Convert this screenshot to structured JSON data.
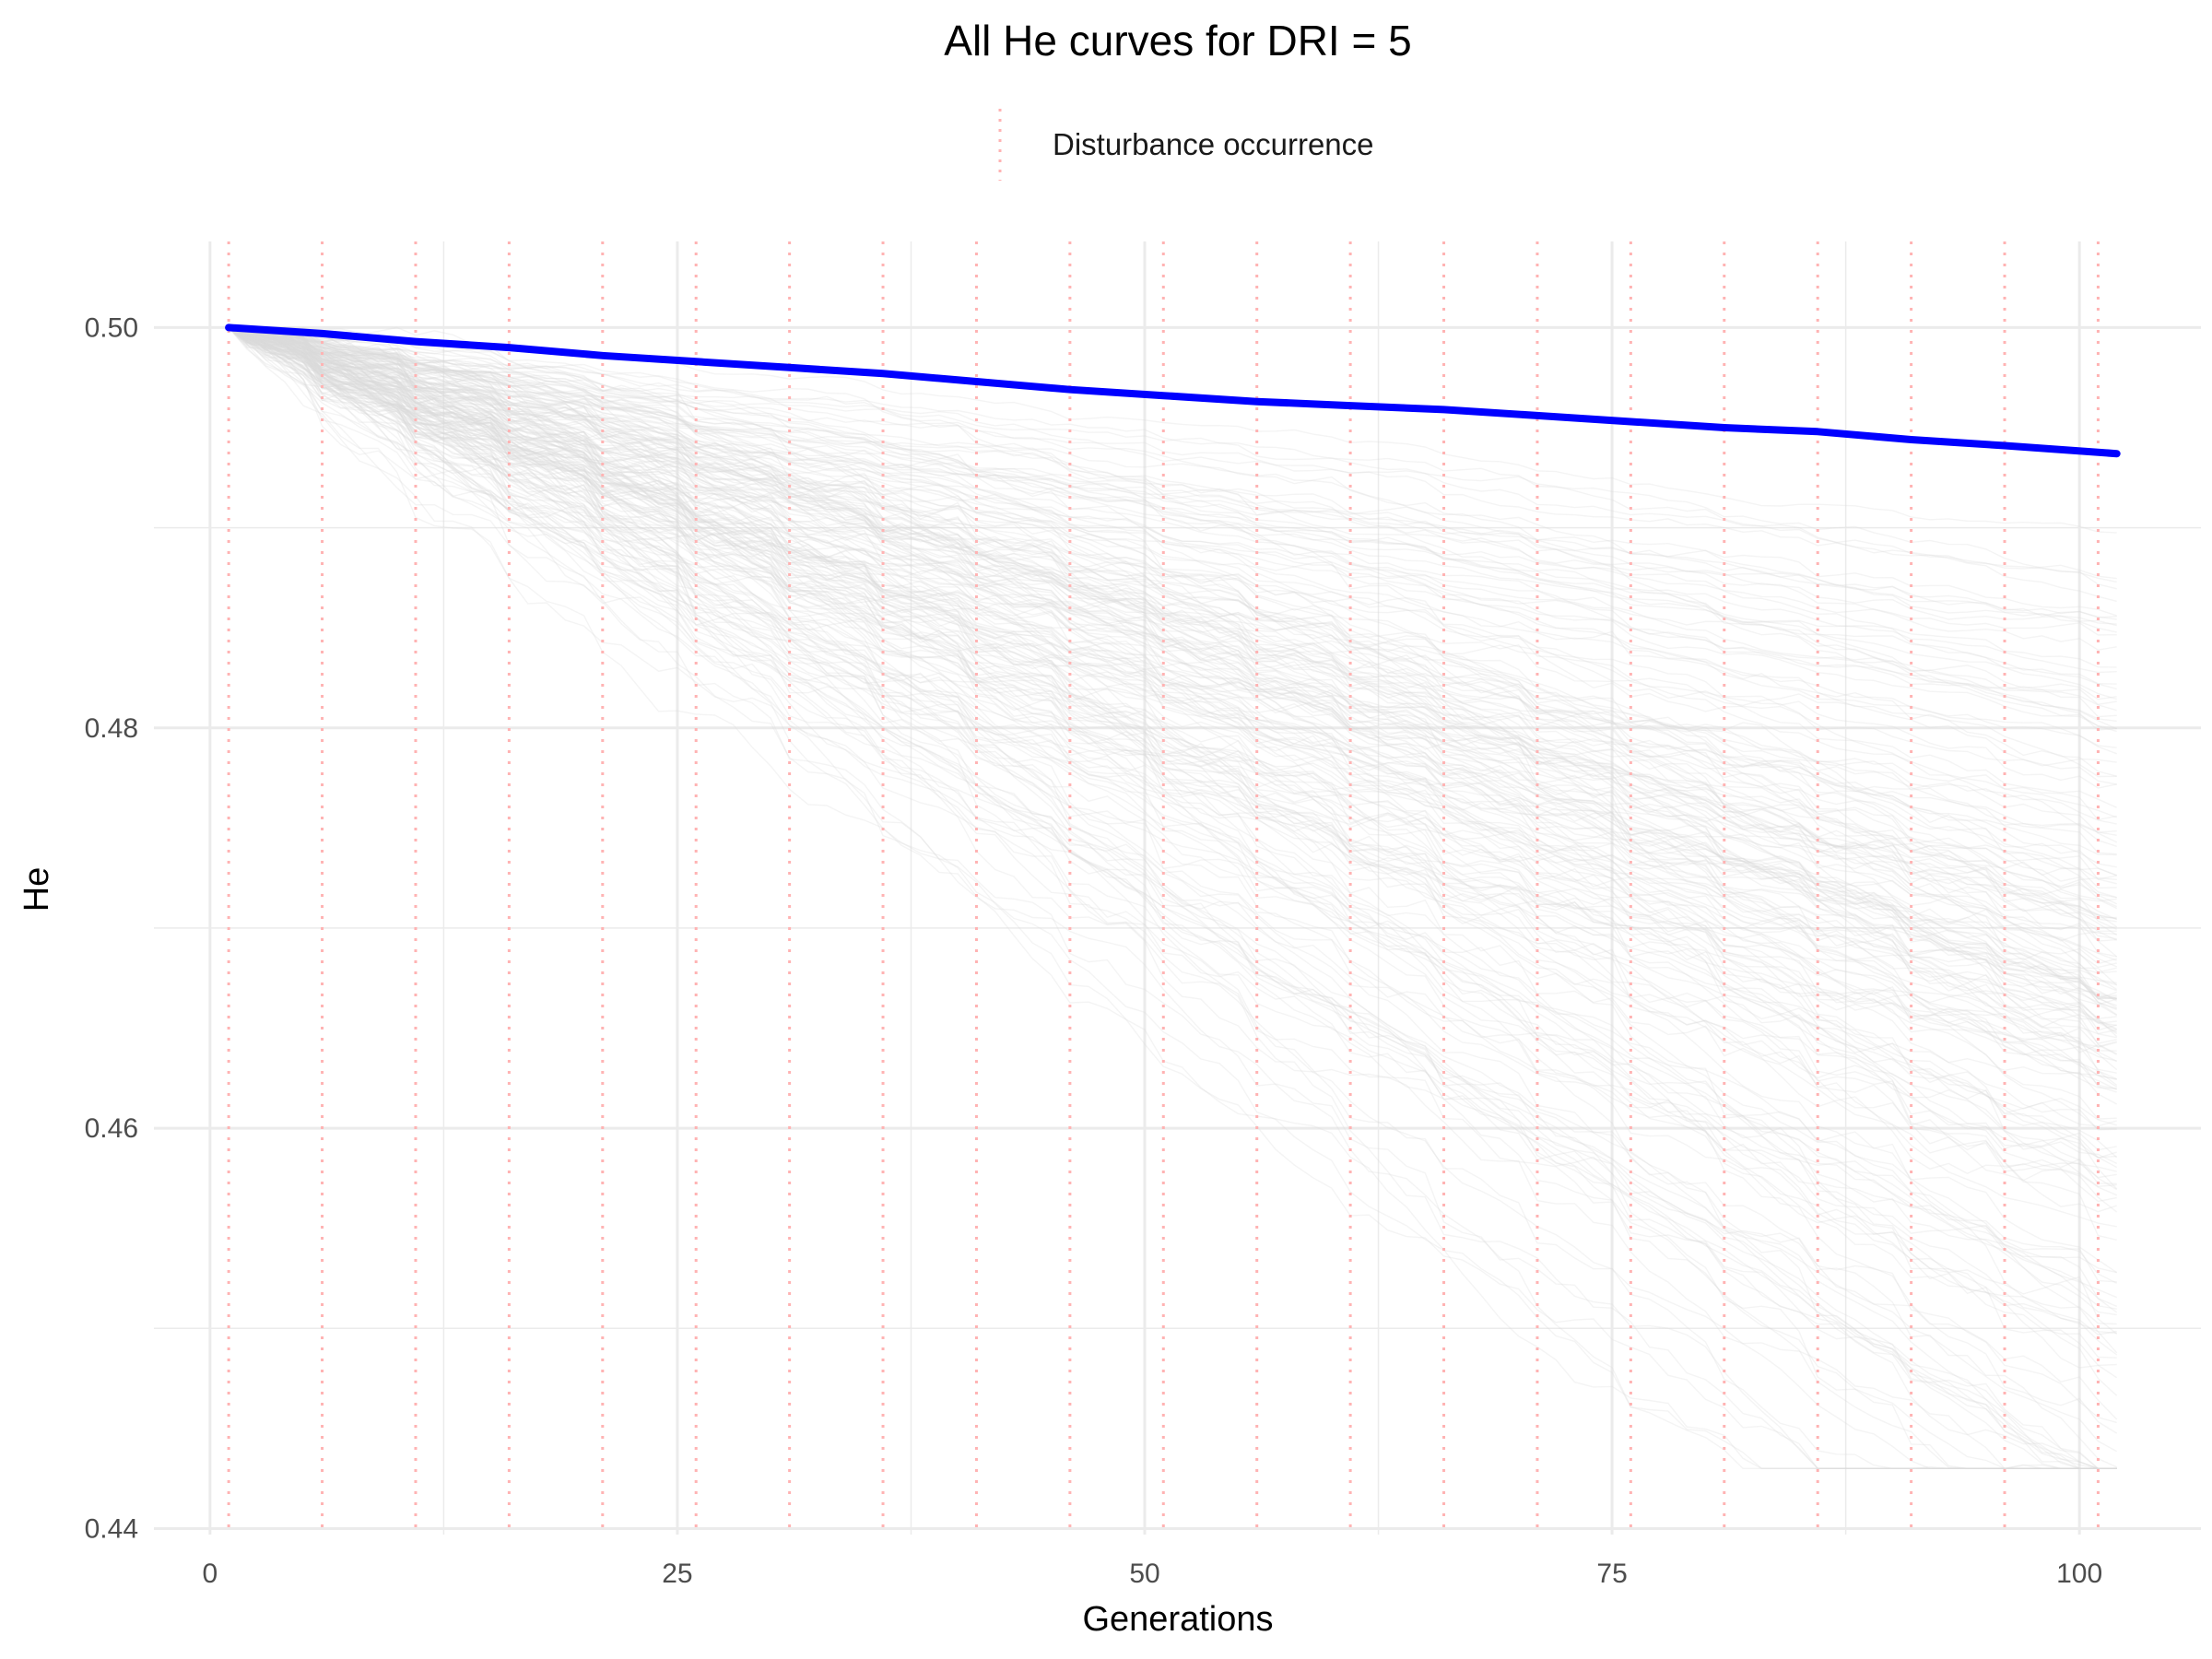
{
  "chart_data": {
    "type": "line",
    "title": "All He curves for DRI = 5",
    "xlabel": "Generations",
    "ylabel": "He",
    "xlim": [
      -3,
      106.5
    ],
    "ylim": [
      0.4397,
      0.5043
    ],
    "x_ticks": [
      0,
      25,
      50,
      75,
      100
    ],
    "x_tick_labels": [
      "0",
      "25",
      "50",
      "75",
      "100"
    ],
    "y_ticks": [
      0.44,
      0.46,
      0.48,
      0.5
    ],
    "y_tick_labels": [
      "0.44",
      "0.46",
      "0.48",
      "0.50"
    ],
    "grid": true,
    "legend": {
      "position": "top",
      "entries": [
        {
          "label": "Disturbance occurrence",
          "color": "#ffb3b3",
          "style": "dotted"
        }
      ]
    },
    "disturbance_x": [
      1,
      6,
      11,
      16,
      21,
      26,
      31,
      36,
      41,
      46,
      51,
      56,
      61,
      66,
      71,
      76,
      81,
      86,
      91,
      96,
      101
    ],
    "mean_curve": {
      "color": "#0000ff",
      "x": [
        1,
        6,
        11,
        16,
        21,
        26,
        31,
        36,
        41,
        46,
        51,
        56,
        61,
        66,
        71,
        76,
        81,
        86,
        91,
        96,
        102
      ],
      "y": [
        0.5,
        0.4997,
        0.4993,
        0.499,
        0.4986,
        0.4983,
        0.498,
        0.4977,
        0.4973,
        0.4969,
        0.4966,
        0.4963,
        0.4961,
        0.4959,
        0.4956,
        0.4953,
        0.495,
        0.4948,
        0.4944,
        0.4941,
        0.4937
      ]
    },
    "replicate_curves": {
      "color": "#d9d9d9",
      "description_count": 200,
      "start_y": 0.5,
      "x_range": [
        1,
        102
      ]
    },
    "colors": {
      "mean": "#0000ff",
      "replicates": "#d9d9d9",
      "disturbance": "#ffb3b3",
      "grid": "#ebebeb"
    }
  }
}
